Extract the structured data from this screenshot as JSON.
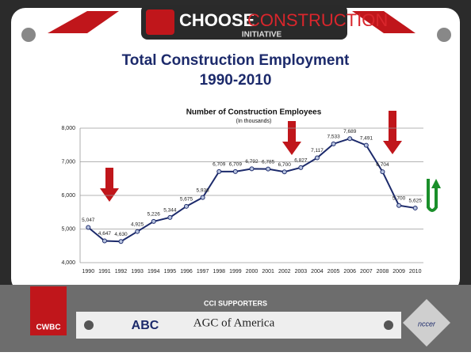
{
  "header": {
    "brand_left": "CHOOSE",
    "brand_right": "CONSTRUCTION",
    "brand_sub": "INITIATIVE"
  },
  "chart_data": {
    "type": "line",
    "title": "Total Construction Employment",
    "title_line2": "1990-2010",
    "chart_title": "Number of Construction Employees",
    "subtitle": "(In thousands)",
    "categories": [
      "1990",
      "1991",
      "1992",
      "1993",
      "1994",
      "1995",
      "1996",
      "1997",
      "1998",
      "1999",
      "2000",
      "2001",
      "2002",
      "2003",
      "2004",
      "2005",
      "2006",
      "2007",
      "2008",
      "2009",
      "2010"
    ],
    "series": [
      {
        "name": "Construction Employees",
        "color": "#1c2a6b",
        "values": [
          5047,
          4647,
          4630,
          4925,
          5226,
          5344,
          5675,
          5938,
          6709,
          6709,
          6792,
          6785,
          6700,
          6827,
          7117,
          7533,
          7689,
          7491,
          6704,
          5700,
          5625
        ],
        "value_labels": [
          "5,047",
          "4,647",
          "4,630",
          "4,925",
          "5,226",
          "5,344",
          "5,675",
          "5,938",
          "6,709",
          "6,709",
          "6,792",
          "6,785",
          "6,700",
          "6,827",
          "7,117",
          "7,533",
          "7,689",
          "7,491",
          "6,704",
          "5,700",
          "5,625"
        ]
      }
    ],
    "ylim": [
      4000,
      8000
    ],
    "yticks": [
      {
        "value": 4000,
        "label": "4,000"
      },
      {
        "value": 5000,
        "label": "5,000"
      },
      {
        "value": 6000,
        "label": "6,000"
      },
      {
        "value": 7000,
        "label": "7,000"
      },
      {
        "value": 8000,
        "label": "8,000"
      }
    ],
    "grid": true
  },
  "footer": {
    "title": "CCI SUPPORTERS",
    "logos": [
      "ABC",
      "AGC of America",
      "CWBC",
      "nccer"
    ]
  }
}
